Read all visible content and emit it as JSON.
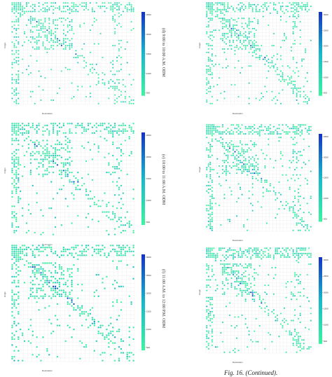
{
  "figure": {
    "caption": "Fig. 16. (Continued)."
  },
  "colors": {
    "low": "#3cf5a0",
    "mid": "#18b9c9",
    "high": "#1432c8",
    "grid": "#e6e6e6"
  },
  "chart_data": [
    {
      "type": "heatmap",
      "caption": "(d) 9:00 to 10:00 A.M. ODM",
      "xlabel": "Destination",
      "ylabel": "Origin",
      "colorbar_ticks": [
        "2500",
        "2000",
        "1500",
        "1000",
        "500"
      ]
    },
    {
      "type": "heatmap",
      "caption": "",
      "xlabel": "Destination",
      "ylabel": "Origin",
      "colorbar_ticks": [
        "3000",
        "2500",
        "2000",
        "1500",
        "1000",
        "500"
      ]
    },
    {
      "type": "heatmap",
      "caption": "(e) 10:00 to 11:00 A.M. ODM",
      "xlabel": "Destination",
      "ylabel": "Origin",
      "colorbar_ticks": [
        "2500",
        "2000",
        "1500",
        "1000",
        "500"
      ]
    },
    {
      "type": "heatmap",
      "caption": "",
      "xlabel": "Destination",
      "ylabel": "Origin",
      "colorbar_ticks": [
        "2500",
        "2000",
        "1500",
        "1000",
        "500"
      ]
    },
    {
      "type": "heatmap",
      "caption": "(f) 11:00 A.M. to 12:00 P.M. ODM",
      "xlabel": "Destination",
      "ylabel": "Origin",
      "colorbar_ticks": [
        "3000",
        "2500",
        "2000",
        "1500",
        "1000",
        "500"
      ]
    },
    {
      "type": "heatmap",
      "caption": "",
      "xlabel": "Destination",
      "ylabel": "Origin",
      "colorbar_ticks": [
        "3000",
        "2500",
        "2000",
        "1500",
        "1000",
        "500"
      ]
    }
  ]
}
